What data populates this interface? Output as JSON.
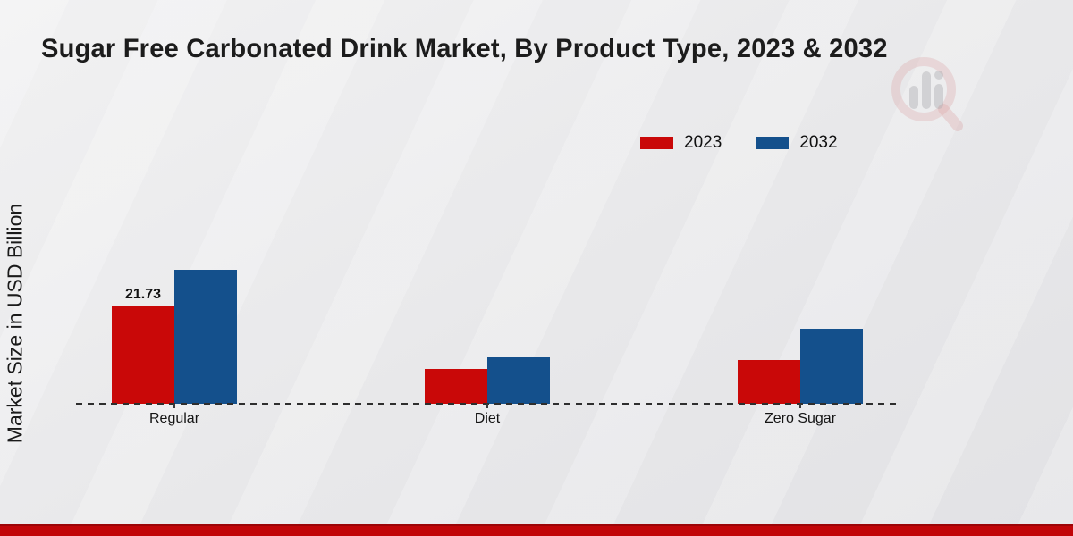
{
  "chart_data": {
    "type": "bar",
    "title": "Sugar Free Carbonated Drink Market, By Product Type, 2023 & 2032",
    "ylabel": "Market Size in USD Billion",
    "xlabel": "",
    "categories": [
      "Regular",
      "Diet",
      "Zero Sugar"
    ],
    "series": [
      {
        "name": "2023",
        "color": "#c90808",
        "values": [
          21.73,
          7.7,
          9.8
        ],
        "value_labels": [
          "21.73",
          "",
          ""
        ]
      },
      {
        "name": "2032",
        "color": "#14508c",
        "values": [
          29.9,
          10.4,
          16.7
        ],
        "value_labels": [
          "",
          "",
          ""
        ]
      }
    ],
    "ylim": [
      0,
      32
    ],
    "grid": false,
    "y_tick_labels_shown": false,
    "legend_position": "top-right",
    "baseline_style": "dashed"
  },
  "colors": {
    "series_2023": "#c90808",
    "series_2032": "#14508c",
    "footer_strip": "#c10508",
    "background": "#e9e9eb",
    "text": "#1a1a1a"
  },
  "icons": {
    "watermark": "bar-chart-magnifier-logo"
  }
}
